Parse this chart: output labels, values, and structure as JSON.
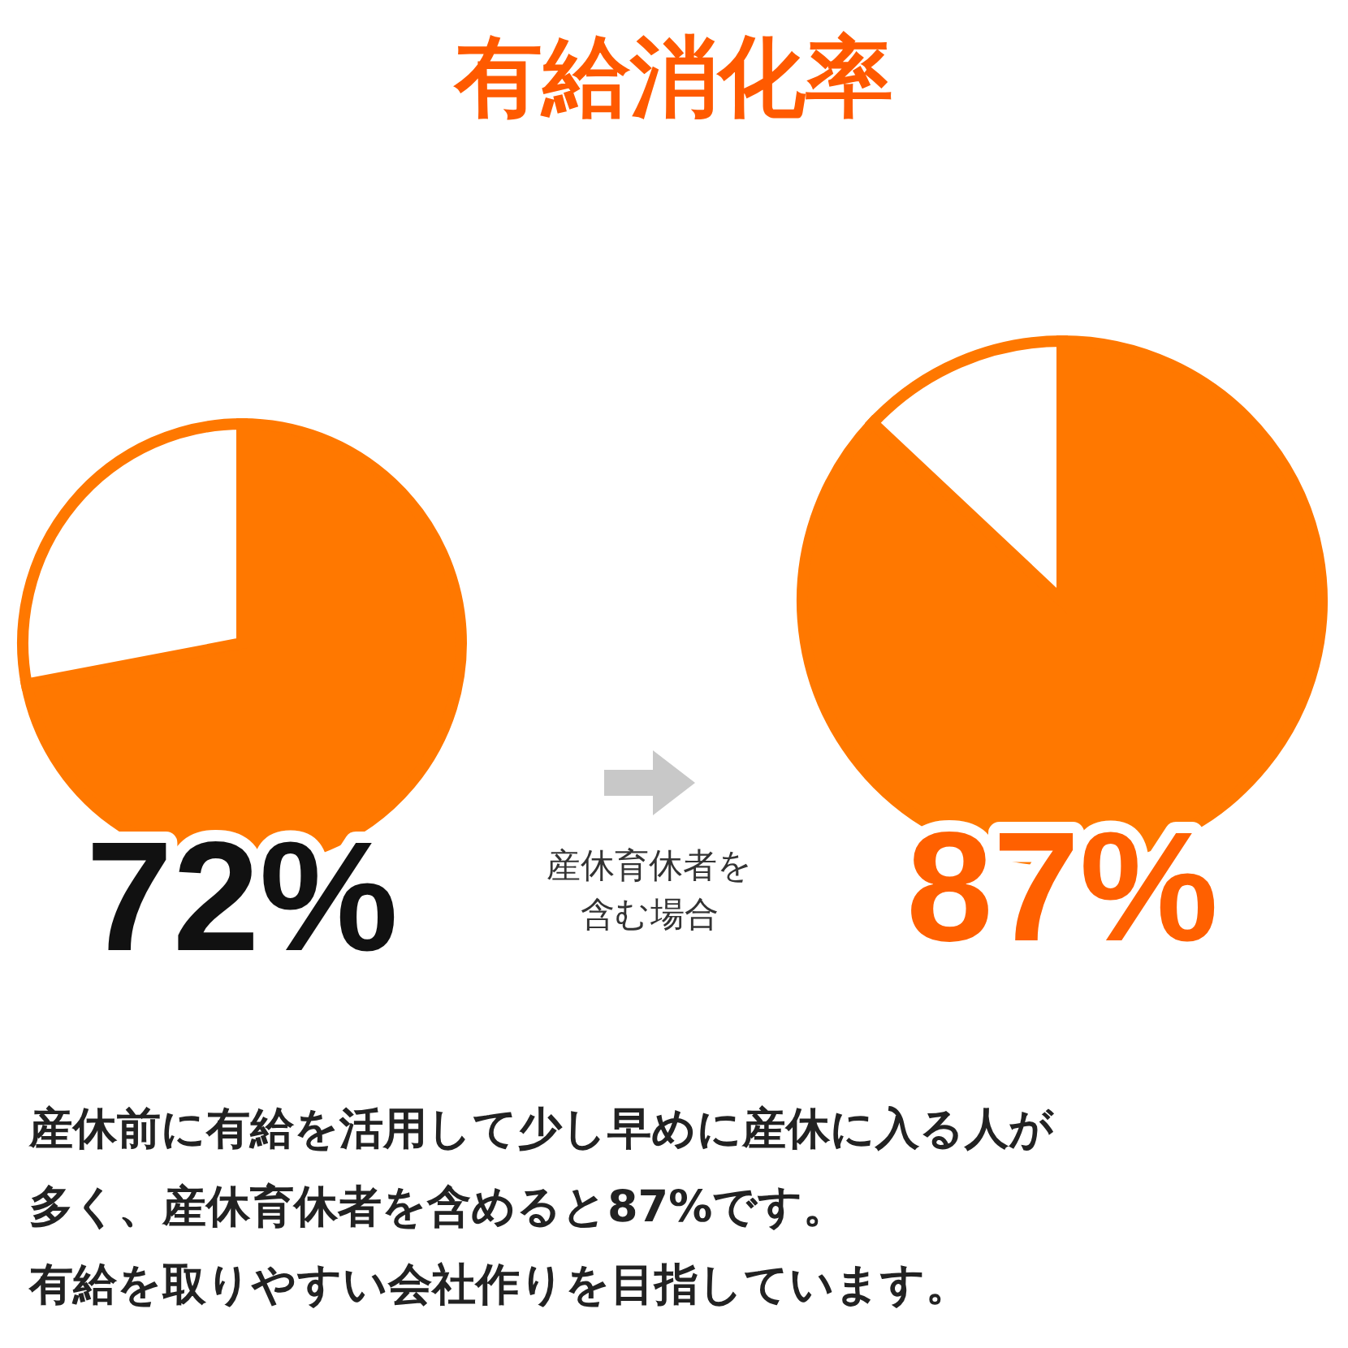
{
  "chart_data": [
    {
      "type": "pie",
      "title": "有給消化率",
      "categories": [
        null,
        null
      ],
      "values": [
        72,
        28
      ],
      "colors": [
        "#ff7800",
        "#ffffff"
      ],
      "value_labels": [
        "72%",
        null
      ]
    },
    {
      "type": "pie",
      "categories": [
        null,
        null
      ],
      "values": [
        87,
        13
      ],
      "colors": [
        "#ff7800",
        "#ffffff"
      ],
      "value_labels": [
        "87%",
        null
      ],
      "annotations": [
        "産休育休者を",
        "含む場合"
      ]
    },
    {
      "type": "other",
      "annotations": [
        "産休前に有給を活用して少し早めに産休に入る人が",
        "多く、産休育休者を含めると87%です。",
        "有給を取りやすい会社作りを目指しています。"
      ]
    }
  ]
}
